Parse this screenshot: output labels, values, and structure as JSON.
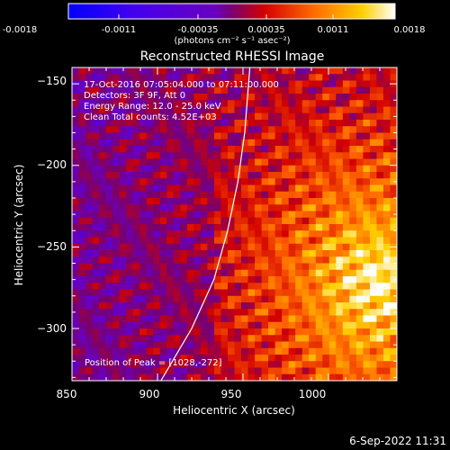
{
  "colorbar": {
    "tick_labels": [
      "-0.0018",
      "-0.0011",
      "-0.00035",
      "0.00035",
      "0.0011",
      "0.0018"
    ],
    "unit_label": "(photons cm⁻² s⁻¹ asec⁻²)",
    "range": [
      -0.0018,
      0.0018
    ],
    "colors": [
      "#0000ff",
      "#6a00d8",
      "#7a00aa",
      "#ff2a00",
      "#ffd800",
      "#ffffff"
    ]
  },
  "chart_data": {
    "type": "heatmap",
    "title": "Reconstructed RHESSI Image",
    "xlabel": "Heliocentric X (arcsec)",
    "ylabel": "Heliocentric Y (arcsec)",
    "xlim": [
      850,
      1040
    ],
    "ylim": [
      -332,
      -140
    ],
    "xticks": [
      850,
      900,
      950,
      1000
    ],
    "yticks": [
      -150,
      -200,
      -250,
      -300
    ],
    "xtick_labels": [
      "850",
      "900",
      "950",
      "1000"
    ],
    "ytick_labels": [
      "−150",
      "−200",
      "−250",
      "−300"
    ],
    "annotations": {
      "time_range": "17-Oct-2016 07:05:04.000 to 07:11:00.000",
      "detectors": "Detectors: 3F 9F, Att 0",
      "energy": "Energy Range: 12.0 - 25.0 keV",
      "algorithm": "Clean    Total counts: 4.52E+03",
      "peak": "Position of Peak = [1028,-272]"
    },
    "peak_position": [
      1028,
      -272
    ],
    "limb_curve": [
      [
        902,
        -332
      ],
      [
        920,
        -300
      ],
      [
        933,
        -270
      ],
      [
        941,
        -240
      ],
      [
        947,
        -210
      ],
      [
        951,
        -180
      ],
      [
        954,
        -140
      ]
    ]
  },
  "footer": {
    "date": "6-Sep-2022 11:31"
  }
}
